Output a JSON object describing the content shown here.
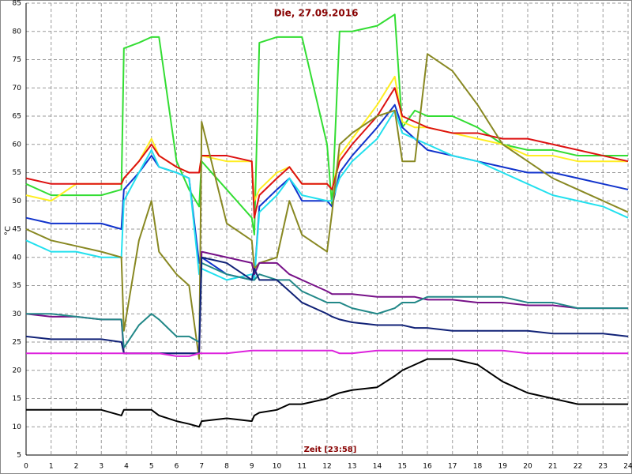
{
  "chart_data": {
    "type": "line",
    "title": "Die, 27.09.2016",
    "x_label": "Zeit [23:58]",
    "y_label": "°C",
    "x": [
      0,
      1,
      2,
      3,
      3.8,
      3.9,
      4.5,
      5,
      5.3,
      6,
      6.5,
      6.9,
      7,
      8,
      9,
      9.1,
      9.3,
      10,
      10.5,
      11,
      12,
      12.2,
      12.5,
      13,
      14,
      14.7,
      15,
      15.5,
      16,
      17,
      18,
      19,
      20,
      21,
      22,
      23,
      24
    ],
    "series": [
      {
        "color": "#33dd33",
        "values": [
          53,
          51,
          51,
          51,
          52,
          77,
          78,
          79,
          79,
          57,
          52,
          49,
          57,
          52,
          47,
          44,
          78,
          79,
          79,
          79,
          60,
          49,
          80,
          80,
          81,
          83,
          63,
          66,
          65,
          65,
          63,
          60,
          59,
          59,
          58,
          58,
          58
        ]
      },
      {
        "color": "#ffee22",
        "values": [
          51,
          50,
          53,
          53,
          53,
          54,
          57,
          61,
          58,
          56,
          55,
          55,
          58,
          57,
          57,
          50,
          52,
          55,
          56,
          53,
          53,
          52,
          58,
          61,
          67,
          72,
          64,
          63,
          63,
          62,
          61,
          60,
          58,
          58,
          57,
          57,
          57
        ]
      },
      {
        "color": "#dd1111",
        "values": [
          54,
          53,
          53,
          53,
          53,
          54,
          57,
          60,
          58,
          56,
          55,
          55,
          58,
          58,
          57,
          47,
          51,
          54,
          56,
          53,
          53,
          52,
          57,
          60,
          65,
          70,
          65,
          64,
          63,
          62,
          62,
          61,
          61,
          60,
          59,
          58,
          57
        ]
      },
      {
        "color": "#1133cc",
        "values": [
          47,
          46,
          46,
          46,
          45,
          52,
          55,
          58,
          56,
          55,
          54,
          39,
          40,
          37,
          36,
          36,
          49,
          52,
          54,
          50,
          50,
          49,
          55,
          58,
          63,
          67,
          63,
          61,
          59,
          58,
          57,
          56,
          55,
          55,
          54,
          53,
          52
        ]
      },
      {
        "color": "#22e0ee",
        "values": [
          43,
          41,
          41,
          40,
          40,
          50,
          55,
          59,
          56,
          55,
          54,
          37,
          38,
          36,
          37,
          36,
          48,
          51,
          54,
          51,
          50,
          50,
          54,
          57,
          61,
          66,
          62,
          61,
          60,
          58,
          57,
          55,
          53,
          51,
          50,
          49,
          47
        ]
      },
      {
        "color": "#888822",
        "values": [
          45,
          43,
          42,
          41,
          40,
          27,
          43,
          50,
          41,
          37,
          35,
          22,
          64,
          46,
          43,
          38,
          39,
          40,
          50,
          44,
          41,
          48,
          60,
          62,
          65,
          66,
          57,
          57,
          76,
          73,
          67,
          60,
          57,
          54,
          52,
          50,
          48
        ]
      },
      {
        "color": "#771188",
        "values": [
          30,
          29.5,
          29.5,
          29,
          29,
          23,
          23,
          23,
          23,
          23,
          23,
          23,
          41,
          40,
          39,
          37,
          39,
          39,
          37,
          36,
          34,
          33.5,
          33.5,
          33.5,
          33,
          33,
          33,
          33,
          32.5,
          32.5,
          32,
          32,
          31.5,
          31.5,
          31,
          31,
          31
        ]
      },
      {
        "color": "#228888",
        "values": [
          30,
          30,
          29.5,
          29,
          29,
          24,
          28,
          30,
          29,
          26,
          26,
          25,
          39,
          37,
          36,
          36,
          37,
          36,
          36,
          34,
          32,
          32,
          32,
          31,
          30,
          31,
          32,
          32,
          33,
          33,
          33,
          33,
          32,
          32,
          31,
          31,
          31
        ]
      },
      {
        "color": "#112277",
        "values": [
          26,
          25.5,
          25.5,
          25.5,
          25,
          23,
          23,
          23,
          23,
          23,
          23,
          23,
          40,
          39,
          36,
          38,
          36,
          36,
          34,
          32,
          30,
          29.5,
          29,
          28.5,
          28,
          28,
          28,
          27.5,
          27.5,
          27,
          27,
          27,
          27,
          26.5,
          26.5,
          26.5,
          26
        ]
      },
      {
        "color": "#dd22dd",
        "values": [
          23,
          23,
          23,
          23,
          23,
          23,
          23,
          23,
          23,
          22.5,
          22.5,
          23,
          23,
          23,
          23.5,
          23.5,
          23.5,
          23.5,
          23.5,
          23.5,
          23.5,
          23.5,
          23,
          23,
          23.5,
          23.5,
          23.5,
          23.5,
          23.5,
          23.5,
          23.5,
          23.5,
          23,
          23,
          23,
          23,
          23
        ]
      },
      {
        "color": "#000000",
        "values": [
          13,
          13,
          13,
          13,
          12,
          13,
          13,
          13,
          12,
          11,
          10.5,
          10,
          11,
          11.5,
          11,
          12,
          12.5,
          13,
          14,
          14,
          15,
          15.5,
          16,
          16.5,
          17,
          19,
          20,
          21,
          22,
          22,
          21,
          18,
          16,
          15,
          14,
          14,
          14
        ]
      }
    ],
    "xlim": [
      0,
      24
    ],
    "ylim": [
      5,
      85
    ],
    "xticks": [
      0,
      1,
      2,
      3,
      4,
      5,
      6,
      7,
      8,
      9,
      10,
      11,
      12,
      13,
      14,
      15,
      16,
      17,
      18,
      19,
      20,
      21,
      22,
      23,
      24
    ],
    "yticks": [
      5,
      10,
      15,
      20,
      25,
      30,
      35,
      40,
      45,
      50,
      55,
      60,
      65,
      70,
      75,
      80,
      85
    ],
    "grid": true
  }
}
